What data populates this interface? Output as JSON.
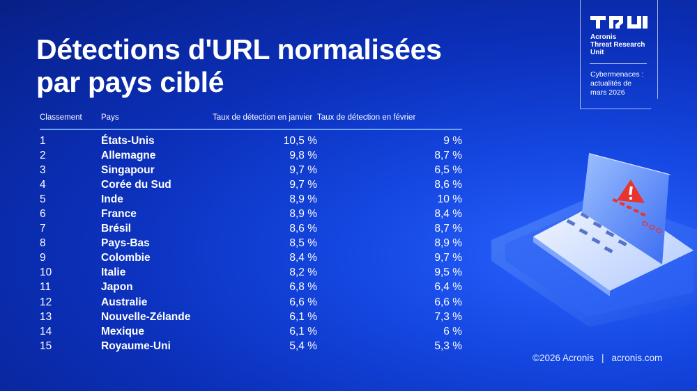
{
  "title": {
    "line1": "Détections d'URL normalisées",
    "line2": "par pays ciblé"
  },
  "badge": {
    "logo_icon": "acronis-tru-logo",
    "unit_line1": "Acronis",
    "unit_line2": "Threat Research",
    "unit_line3": "Unit",
    "sub_line1": "Cybermenaces :",
    "sub_line2": "actualités de",
    "sub_line3": "mars 2026"
  },
  "footer": {
    "copyright": "©2026 Acronis",
    "separator": "|",
    "site": "acronis.com"
  },
  "illustration": {
    "icon": "laptop-warning-icon",
    "warning_color": "#e8332f"
  },
  "chart_data": {
    "type": "table",
    "columns": [
      "Classement",
      "Pays",
      "Taux de détection en janvier",
      "Taux de détection en février"
    ],
    "rows": [
      {
        "rank": "1",
        "country": "États-Unis",
        "jan": "10,5 %",
        "feb": "9 %"
      },
      {
        "rank": "2",
        "country": "Allemagne",
        "jan": "9,8 %",
        "feb": "8,7 %"
      },
      {
        "rank": "3",
        "country": "Singapour",
        "jan": "9,7 %",
        "feb": "6,5 %"
      },
      {
        "rank": "4",
        "country": "Corée du Sud",
        "jan": "9,7 %",
        "feb": "8,6 %"
      },
      {
        "rank": "5",
        "country": "Inde",
        "jan": "8,9 %",
        "feb": "10 %"
      },
      {
        "rank": "6",
        "country": "France",
        "jan": "8,9 %",
        "feb": "8,4 %"
      },
      {
        "rank": "7",
        "country": "Brésil",
        "jan": "8,6 %",
        "feb": "8,7 %"
      },
      {
        "rank": "8",
        "country": "Pays-Bas",
        "jan": "8,5 %",
        "feb": "8,9 %"
      },
      {
        "rank": "9",
        "country": "Colombie",
        "jan": "8,4 %",
        "feb": "9,7 %"
      },
      {
        "rank": "10",
        "country": "Italie",
        "jan": "8,2 %",
        "feb": "9,5 %"
      },
      {
        "rank": "11",
        "country": "Japon",
        "jan": "6,8 %",
        "feb": "6,4 %"
      },
      {
        "rank": "12",
        "country": "Australie",
        "jan": "6,6 %",
        "feb": "6,6 %"
      },
      {
        "rank": "13",
        "country": "Nouvelle-Zélande",
        "jan": "6,1 %",
        "feb": "7,3 %"
      },
      {
        "rank": "14",
        "country": "Mexique",
        "jan": "6,1 %",
        "feb": "6 %"
      },
      {
        "rank": "15",
        "country": "Royaume-Uni",
        "jan": "5,4 %",
        "feb": "5,3 %"
      }
    ]
  }
}
